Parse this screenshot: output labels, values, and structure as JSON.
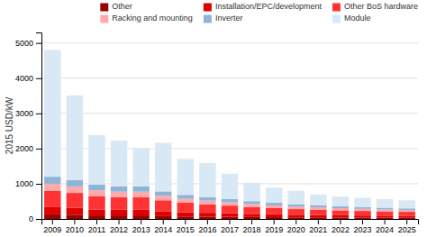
{
  "chart_data": {
    "type": "bar",
    "stacked": true,
    "categories": [
      "2009",
      "2010",
      "2011",
      "2012",
      "2013",
      "2014",
      "2015",
      "2016",
      "2017",
      "2018",
      "2019",
      "2020",
      "2021",
      "2022",
      "2023",
      "2024",
      "2025"
    ],
    "series": [
      {
        "name": "Other",
        "color": "#990000",
        "values": [
          130,
          120,
          100,
          100,
          100,
          80,
          70,
          65,
          60,
          55,
          50,
          45,
          45,
          40,
          38,
          35,
          33
        ]
      },
      {
        "name": "Installation/EPC/development",
        "color": "#dd0000",
        "values": [
          220,
          200,
          170,
          160,
          160,
          140,
          120,
          110,
          100,
          90,
          82,
          75,
          70,
          65,
          60,
          58,
          55
        ]
      },
      {
        "name": "Other BoS hardware",
        "color": "#ff3333",
        "values": [
          450,
          420,
          380,
          360,
          360,
          310,
          270,
          240,
          220,
          195,
          175,
          160,
          150,
          140,
          130,
          122,
          115
        ]
      },
      {
        "name": "Racking and mounting",
        "color": "#ffaaaa",
        "values": [
          200,
          185,
          165,
          155,
          155,
          130,
          115,
          105,
          95,
          85,
          78,
          72,
          67,
          62,
          58,
          54,
          50
        ]
      },
      {
        "name": "Inverter",
        "color": "#8eb4d8",
        "values": [
          200,
          185,
          165,
          150,
          150,
          125,
          110,
          100,
          90,
          82,
          75,
          68,
          63,
          58,
          54,
          50,
          47
        ]
      },
      {
        "name": "Module",
        "color": "#d9e8f5",
        "values": [
          3600,
          2400,
          1400,
          1300,
          1090,
          1380,
          1020,
          970,
          720,
          520,
          430,
          380,
          300,
          270,
          260,
          250,
          230
        ]
      }
    ],
    "ylabel": "2015 USD/kW",
    "ylim": [
      0,
      5300
    ],
    "yticks": [
      0,
      1000,
      2000,
      3000,
      4000,
      5000
    ],
    "grid": true,
    "legend": "upper right"
  }
}
